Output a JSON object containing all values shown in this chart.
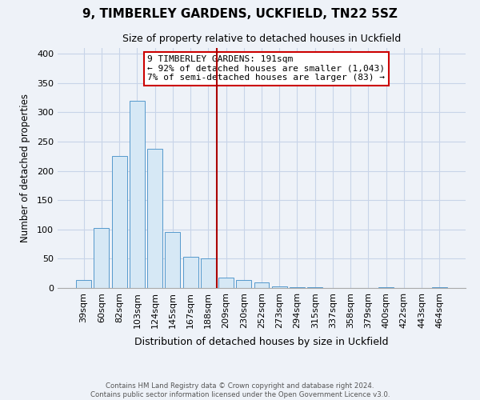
{
  "title": "9, TIMBERLEY GARDENS, UCKFIELD, TN22 5SZ",
  "subtitle": "Size of property relative to detached houses in Uckfield",
  "xlabel": "Distribution of detached houses by size in Uckfield",
  "ylabel": "Number of detached properties",
  "bar_labels": [
    "39sqm",
    "60sqm",
    "82sqm",
    "103sqm",
    "124sqm",
    "145sqm",
    "167sqm",
    "188sqm",
    "209sqm",
    "230sqm",
    "252sqm",
    "273sqm",
    "294sqm",
    "315sqm",
    "337sqm",
    "358sqm",
    "379sqm",
    "400sqm",
    "422sqm",
    "443sqm",
    "464sqm"
  ],
  "bar_heights": [
    13,
    103,
    225,
    320,
    238,
    96,
    53,
    50,
    18,
    14,
    9,
    3,
    1,
    1,
    0,
    0,
    0,
    1,
    0,
    0,
    1
  ],
  "bar_color": "#d6e8f5",
  "bar_edge_color": "#5599cc",
  "vline_x": 7.5,
  "vline_color": "#aa0000",
  "annotation_title": "9 TIMBERLEY GARDENS: 191sqm",
  "annotation_line1": "← 92% of detached houses are smaller (1,043)",
  "annotation_line2": "7% of semi-detached houses are larger (83) →",
  "annotation_box_color": "#ffffff",
  "annotation_box_edge": "#cc0000",
  "ylim": [
    0,
    410
  ],
  "yticks": [
    0,
    50,
    100,
    150,
    200,
    250,
    300,
    350,
    400
  ],
  "footer1": "Contains HM Land Registry data © Crown copyright and database right 2024.",
  "footer2": "Contains public sector information licensed under the Open Government Licence v3.0.",
  "bg_color": "#eef2f8",
  "plot_bg_color": "#eef2f8",
  "grid_color": "#c8d4e8"
}
